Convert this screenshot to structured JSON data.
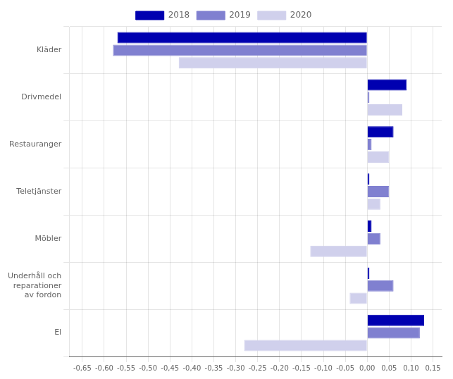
{
  "chart_data": {
    "type": "bar",
    "orientation": "horizontal",
    "categories": [
      "Kläder",
      "Drivmedel",
      "Restauranger",
      "Teletjänster",
      "Möbler",
      "Underhåll och\nreparationer\nav fordon",
      "El"
    ],
    "series": [
      {
        "name": "2018",
        "color": "#0000b0",
        "values": [
          -0.57,
          0.09,
          0.06,
          0.005,
          0.01,
          0.005,
          0.13
        ]
      },
      {
        "name": "2019",
        "color": "#8080d0",
        "values": [
          -0.58,
          0.005,
          0.01,
          0.05,
          0.03,
          0.06,
          0.12
        ]
      },
      {
        "name": "2020",
        "color": "#d0d0ec",
        "values": [
          -0.43,
          0.08,
          0.05,
          0.03,
          -0.13,
          -0.04,
          -0.28
        ]
      }
    ],
    "xlim": [
      -0.68,
      0.17
    ],
    "xticks": [
      {
        "value": -0.65,
        "label": "-0,65"
      },
      {
        "value": -0.6,
        "label": "-0,60"
      },
      {
        "value": -0.55,
        "label": "-0,55"
      },
      {
        "value": -0.5,
        "label": "-0,50"
      },
      {
        "value": -0.45,
        "label": "-0,45"
      },
      {
        "value": -0.4,
        "label": "-0,40"
      },
      {
        "value": -0.35,
        "label": "-0,35"
      },
      {
        "value": -0.3,
        "label": "-0,30"
      },
      {
        "value": -0.25,
        "label": "-0,25"
      },
      {
        "value": -0.2,
        "label": "-0,20"
      },
      {
        "value": -0.15,
        "label": "-0,15"
      },
      {
        "value": -0.1,
        "label": "-0,10"
      },
      {
        "value": -0.05,
        "label": "-0,05"
      },
      {
        "value": 0.0,
        "label": "0,00"
      },
      {
        "value": 0.05,
        "label": "0,05"
      },
      {
        "value": 0.1,
        "label": "0,10"
      },
      {
        "value": 0.15,
        "label": "0,15"
      }
    ],
    "grid": true,
    "legend": "top"
  }
}
